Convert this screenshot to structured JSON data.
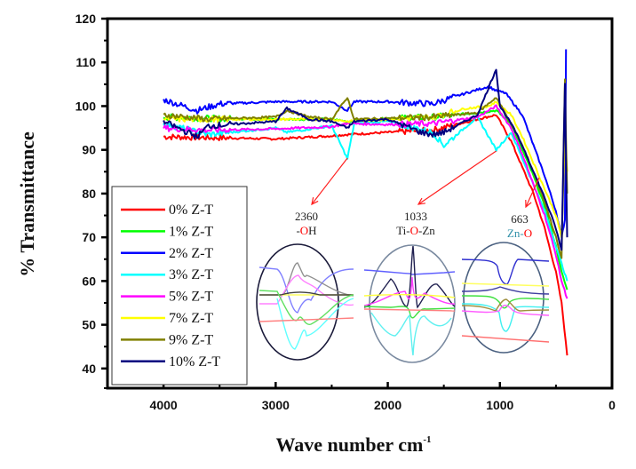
{
  "chart_data": {
    "type": "line",
    "title": "",
    "xlabel": "Wave number cm",
    "xlabel_superscript": "-1",
    "ylabel": "% Transmittance",
    "xlim": [
      4500,
      0
    ],
    "ylim": [
      35.5,
      120
    ],
    "x_ticks": [
      4000,
      3000,
      2000,
      1000,
      0
    ],
    "y_ticks": [
      40,
      50,
      60,
      70,
      80,
      90,
      100,
      110,
      120
    ],
    "grid": false,
    "legend_position": "bottom-left",
    "series": [
      {
        "name": "0% Z-T",
        "color": "#ff0000",
        "x": [
          4000,
          3600,
          3000,
          2500,
          2360,
          2000,
          1600,
          1200,
          1033,
          900,
          800,
          700,
          600,
          500,
          450,
          400
        ],
        "y": [
          93,
          92.8,
          92.5,
          93.2,
          93.5,
          94,
          94.5,
          97,
          98,
          92,
          86,
          80,
          72,
          62,
          55,
          43
        ]
      },
      {
        "name": "1% Z-T",
        "color": "#00ff00",
        "x": [
          4000,
          3600,
          3000,
          2500,
          2360,
          2000,
          1600,
          1200,
          1033,
          900,
          800,
          700,
          600,
          500,
          450,
          400
        ],
        "y": [
          97.5,
          97.2,
          97,
          97,
          96.5,
          97.2,
          97.5,
          98.5,
          99,
          96,
          90,
          84,
          77,
          68,
          62,
          58
        ]
      },
      {
        "name": "2% Z-T",
        "color": "#0000ff",
        "x": [
          4000,
          3700,
          3500,
          3000,
          2500,
          2360,
          2300,
          2000,
          1600,
          1300,
          1100,
          1033,
          950,
          800,
          700,
          600,
          500,
          450,
          420,
          410
        ],
        "y": [
          101.5,
          99,
          100.5,
          101,
          101,
          99,
          101,
          101,
          100.5,
          103,
          104.5,
          103.5,
          103,
          98,
          91,
          84,
          76,
          70,
          74,
          113
        ]
      },
      {
        "name": "3% Z-T",
        "color": "#00ffff",
        "x": [
          4000,
          3600,
          3000,
          2900,
          2500,
          2360,
          2300,
          2000,
          1600,
          1500,
          1200,
          1033,
          900,
          800,
          700,
          600,
          500,
          450,
          400
        ],
        "y": [
          96,
          93.5,
          95,
          94,
          95.5,
          88,
          96,
          96.5,
          94,
          91,
          97.5,
          90,
          94,
          88,
          82,
          76,
          68,
          64,
          60
        ]
      },
      {
        "name": "5% Z-T",
        "color": "#ff00ff",
        "x": [
          4000,
          3600,
          3000,
          2500,
          2360,
          2000,
          1600,
          1200,
          1033,
          900,
          800,
          700,
          600,
          500,
          450,
          400
        ],
        "y": [
          95,
          94.5,
          94.8,
          95.3,
          96,
          95.8,
          96,
          97.5,
          100,
          95,
          89,
          82,
          75,
          66,
          60,
          56
        ]
      },
      {
        "name": "7% Z-T",
        "color": "#ffff00",
        "x": [
          4000,
          3600,
          3000,
          2500,
          2360,
          2000,
          1600,
          1300,
          1100,
          1033,
          900,
          800,
          700,
          600,
          500,
          450,
          420,
          400
        ],
        "y": [
          97,
          97,
          97,
          97,
          96.5,
          97,
          97.5,
          99.5,
          100,
          101,
          98,
          93,
          87,
          81,
          75,
          70,
          93,
          85
        ]
      },
      {
        "name": "9% Z-T",
        "color": "#808000",
        "x": [
          4000,
          3600,
          3000,
          2900,
          2700,
          2500,
          2360,
          2300,
          2000,
          1600,
          1200,
          1033,
          900,
          800,
          700,
          600,
          500,
          450,
          420,
          400
        ],
        "y": [
          98,
          97,
          97.5,
          99,
          97.5,
          97,
          102,
          97,
          97.2,
          97.5,
          98.5,
          102,
          96,
          91,
          85,
          78,
          70,
          65,
          106,
          80
        ]
      },
      {
        "name": "10% Z-T",
        "color": "#000080",
        "x": [
          4000,
          3700,
          3600,
          3000,
          2900,
          2700,
          2500,
          2360,
          2300,
          2000,
          1700,
          1600,
          1500,
          1200,
          1033,
          1000,
          900,
          800,
          700,
          600,
          500,
          450,
          420,
          400
        ],
        "y": [
          96.5,
          93,
          95.5,
          96.5,
          99.5,
          97,
          96.5,
          95,
          96.5,
          97,
          94,
          93.5,
          94,
          98,
          108.5,
          100,
          96,
          91,
          85,
          79,
          72,
          67,
          105,
          70
        ]
      }
    ],
    "annotations": [
      {
        "peak": "2360",
        "label_parts": [
          "-",
          "O",
          "H"
        ],
        "part_colors": [
          "#222222",
          "#ff0000",
          "#222222"
        ]
      },
      {
        "peak": "1033",
        "label_parts": [
          "Ti-",
          "O",
          "-Zn"
        ],
        "part_colors": [
          "#222222",
          "#ff0000",
          "#222222"
        ]
      },
      {
        "peak": "663",
        "label_parts": [
          "Zn-",
          "O"
        ],
        "part_colors": [
          "#2e8fa8",
          "#ff0000"
        ]
      }
    ]
  }
}
